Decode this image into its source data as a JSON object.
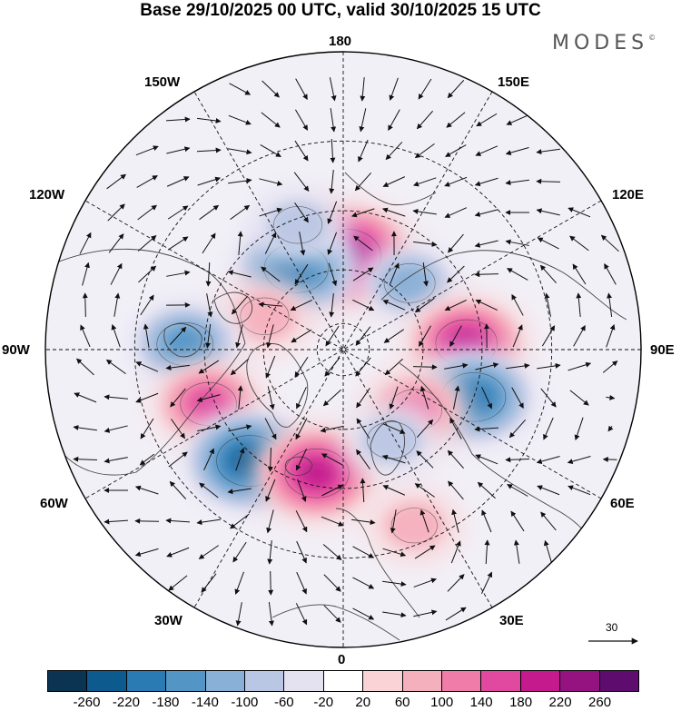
{
  "header": {
    "title": "Base 29/10/2025 00 UTC, valid 30/10/2025 15 UTC",
    "brand": "MODES",
    "brand_mark": "©"
  },
  "map": {
    "projection": "north polar stereographic",
    "longitude_labels": {
      "lon_180": "180",
      "lon_150W": "150W",
      "lon_150E": "150E",
      "lon_120W": "120W",
      "lon_120E": "120E",
      "lon_90W": "90W",
      "lon_90E": "90E",
      "lon_60W": "60W",
      "lon_60E": "60E",
      "lon_30W": "30W",
      "lon_30E": "30E",
      "lon_0": "0"
    },
    "anomaly_centers": [
      {
        "name": "pink-north",
        "lon": 178,
        "lat": 55,
        "peak": 240
      },
      {
        "name": "blue-150W",
        "lon": -150,
        "lat": 55,
        "peak": -200
      },
      {
        "name": "blue-160W",
        "lon": -160,
        "lat": 42,
        "peak": -80
      },
      {
        "name": "pink-110W",
        "lon": -113,
        "lat": 58,
        "peak": 80
      },
      {
        "name": "blue-90W",
        "lon": -92,
        "lat": 34,
        "peak": -140
      },
      {
        "name": "pink-70W",
        "lon": -68,
        "lat": 38,
        "peak": 140
      },
      {
        "name": "blue-40W",
        "lon": -40,
        "lat": 38,
        "peak": -220
      },
      {
        "name": "pink-15W",
        "lon": -12,
        "lat": 44,
        "peak": 200
      },
      {
        "name": "blue-130E",
        "lon": 135,
        "lat": 55,
        "peak": -100
      },
      {
        "name": "pink-90E",
        "lon": 93,
        "lat": 45,
        "peak": 180
      },
      {
        "name": "blue-70E",
        "lon": 70,
        "lat": 40,
        "peak": -200
      },
      {
        "name": "pink-55E",
        "lon": 50,
        "lat": 55,
        "peak": 120
      },
      {
        "name": "blue-30E",
        "lon": 28,
        "lat": 52,
        "peak": -80
      },
      {
        "name": "pink-20E",
        "lon": 22,
        "lat": 25,
        "peak": 60
      }
    ]
  },
  "vector_reference": {
    "value": "30"
  },
  "colorbar": {
    "colors": [
      "#0b3352",
      "#0d5b8e",
      "#2a7ab4",
      "#5396c6",
      "#89b0d6",
      "#bac7e4",
      "#e4e2f1",
      "#ffffff",
      "#f9d3d6",
      "#f5b0bd",
      "#f07da9",
      "#e1489f",
      "#c41a8e",
      "#951281",
      "#5e0d6e"
    ],
    "tick_labels": [
      "-260",
      "-220",
      "-180",
      "-140",
      "-100",
      "-60",
      "-20",
      "20",
      "60",
      "100",
      "140",
      "180",
      "220",
      "260"
    ]
  }
}
